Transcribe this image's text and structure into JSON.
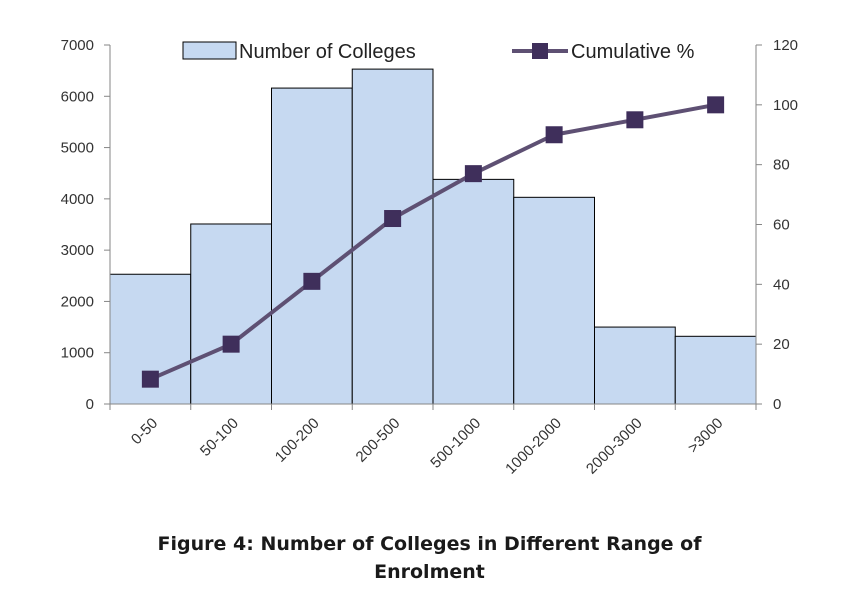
{
  "chart_data": {
    "type": "bar",
    "categories": [
      "0-50",
      "50-100",
      "100-200",
      "200-500",
      "500-1000",
      "1000-2000",
      "2000-3000",
      ">3000"
    ],
    "series": [
      {
        "name": "Number of Colleges",
        "type": "bar",
        "axis": "left",
        "color": "#c6d9f1",
        "values": [
          2530,
          3510,
          6160,
          6530,
          4380,
          4030,
          1500,
          1320
        ]
      },
      {
        "name": "Cumulative %",
        "type": "line",
        "axis": "right",
        "color": "#5b4a76",
        "values": [
          8.3,
          20,
          41,
          62,
          77,
          90,
          95,
          100
        ]
      }
    ],
    "ylim": [
      0,
      7000
    ],
    "y_ticks": [
      0,
      1000,
      2000,
      3000,
      4000,
      5000,
      6000,
      7000
    ],
    "y2lim": [
      0,
      120
    ],
    "y2_ticks": [
      0,
      20,
      40,
      60,
      80,
      100,
      120
    ],
    "legend_position": "top",
    "grid": false,
    "title_line1": "Figure 4: Number of Colleges in Different Range of",
    "title_line2": "Enrolment"
  }
}
